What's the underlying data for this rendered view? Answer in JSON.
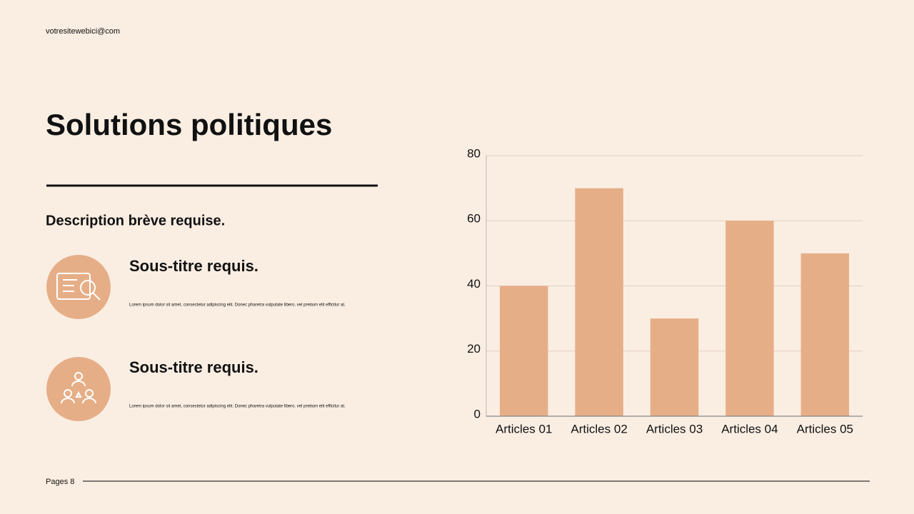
{
  "header": {
    "website": "votresitewebici@com"
  },
  "title": "Solutions politiques",
  "description": "Description brève requise.",
  "items": [
    {
      "subtitle": "Sous-titre requis.",
      "text": "Lorem ipsum dolor sit amet, consectetur adipiscing elit. Donec pharetra vulputate libero. vel pretium elit efficitur at."
    },
    {
      "subtitle": "Sous-titre requis.",
      "text": "Lorem ipsum dolor sit amet, consectetur adipiscing elit. Donec pharetra vulputate libero. vel pretium elit efficitur at."
    }
  ],
  "footer": {
    "page": "Pages 8"
  },
  "chart_data": {
    "type": "bar",
    "categories": [
      "Articles 01",
      "Articles 02",
      "Articles 03",
      "Articles 04",
      "Articles 05"
    ],
    "values": [
      40,
      70,
      30,
      60,
      50
    ],
    "color": "#e6ae87",
    "ylim": [
      0,
      80
    ],
    "yticks": [
      0,
      20,
      40,
      60,
      80
    ],
    "grid": true
  }
}
